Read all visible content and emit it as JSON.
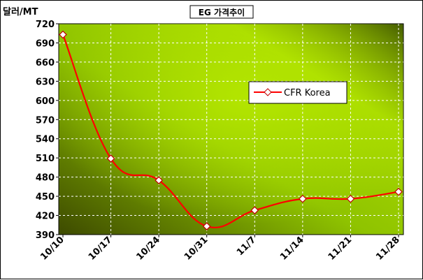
{
  "chart_data": {
    "type": "line",
    "title": "EG 가격추이",
    "ylabel": "달러/MT",
    "xlabel": "",
    "categories": [
      "10/10",
      "10/17",
      "10/24",
      "10/31",
      "11/7",
      "11/14",
      "11/21",
      "11/28"
    ],
    "y_ticks": [
      "720",
      "690",
      "660",
      "630",
      "600",
      "570",
      "540",
      "510",
      "480",
      "450",
      "420",
      "390"
    ],
    "ylim": [
      390,
      720
    ],
    "grid": true,
    "legend_position": "right",
    "series": [
      {
        "name": "CFR Korea",
        "values": [
          703,
          509,
          475,
          403,
          428,
          446,
          446,
          457
        ],
        "color": "#ff0000"
      }
    ],
    "colors": {
      "plot_dark": "#3d4a00",
      "plot_light": "#b8e800",
      "line": "#ff0000",
      "marker_fill": "#ffffff",
      "marker_stroke": "#c00000"
    }
  }
}
